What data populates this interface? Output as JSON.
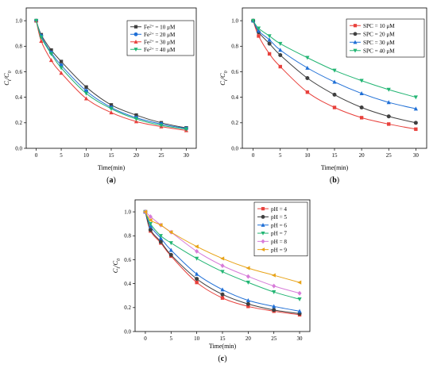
{
  "chart_data": [
    {
      "panel_label": "(a)",
      "type": "line",
      "xlabel": "Time(min)",
      "ylabel": "Ct/C0",
      "xlim": [
        -2,
        32
      ],
      "ylim": [
        0.0,
        1.1
      ],
      "x_ticks": [
        0,
        5,
        10,
        15,
        20,
        25,
        30
      ],
      "y_ticks": [
        0.0,
        0.2,
        0.4,
        0.6,
        0.8,
        1.0
      ],
      "legend_position": "top-right",
      "x": [
        0,
        1,
        3,
        5,
        10,
        15,
        20,
        25,
        30
      ],
      "series": [
        {
          "name_prefix": "Fe",
          "name_sup": "2+",
          "name_suffix": " = 10 μM",
          "color": "#3f3f3f",
          "marker": "square",
          "values": [
            1.0,
            0.89,
            0.77,
            0.68,
            0.48,
            0.34,
            0.26,
            0.2,
            0.16
          ]
        },
        {
          "name_prefix": "Fe",
          "name_sup": "2+",
          "name_suffix": " = 20 μM",
          "color": "#1f6fd6",
          "marker": "circle",
          "values": [
            1.0,
            0.88,
            0.75,
            0.65,
            0.45,
            0.32,
            0.24,
            0.19,
            0.155
          ]
        },
        {
          "name_prefix": "Fe",
          "name_sup": "2+",
          "name_suffix": " = 30 μM",
          "color": "#e8413c",
          "marker": "triangle",
          "values": [
            1.0,
            0.84,
            0.69,
            0.59,
            0.39,
            0.28,
            0.21,
            0.17,
            0.14
          ]
        },
        {
          "name_prefix": "Fe",
          "name_sup": "2+",
          "name_suffix": " = 40 μM",
          "color": "#22b573",
          "marker": "triangle-down",
          "values": [
            1.0,
            0.87,
            0.74,
            0.63,
            0.43,
            0.31,
            0.23,
            0.18,
            0.15
          ]
        }
      ]
    },
    {
      "panel_label": "(b)",
      "type": "line",
      "xlabel": "Time(min)",
      "ylabel": "Ct/C0",
      "xlim": [
        -2,
        32
      ],
      "ylim": [
        0.0,
        1.1
      ],
      "x_ticks": [
        0,
        5,
        10,
        15,
        20,
        25,
        30
      ],
      "y_ticks": [
        0.0,
        0.2,
        0.4,
        0.6,
        0.8,
        1.0
      ],
      "legend_position": "top-right",
      "x": [
        0,
        1,
        3,
        5,
        10,
        15,
        20,
        25,
        30
      ],
      "series": [
        {
          "name_prefix": "SPC = 10 μM",
          "name_sup": "",
          "name_suffix": "",
          "color": "#e8413c",
          "marker": "square",
          "values": [
            1.0,
            0.88,
            0.74,
            0.64,
            0.44,
            0.32,
            0.24,
            0.19,
            0.15
          ]
        },
        {
          "name_prefix": "SPC = 20 μM",
          "name_sup": "",
          "name_suffix": "",
          "color": "#3f3f3f",
          "marker": "circle",
          "values": [
            1.0,
            0.91,
            0.82,
            0.73,
            0.55,
            0.42,
            0.32,
            0.25,
            0.2
          ]
        },
        {
          "name_prefix": "SPC = 30 μM",
          "name_sup": "",
          "name_suffix": "",
          "color": "#1f6fd6",
          "marker": "triangle",
          "values": [
            1.0,
            0.92,
            0.85,
            0.77,
            0.63,
            0.52,
            0.43,
            0.36,
            0.31
          ]
        },
        {
          "name_prefix": "SPC = 40 μM",
          "name_sup": "",
          "name_suffix": "",
          "color": "#22b573",
          "marker": "triangle-down",
          "values": [
            1.0,
            0.94,
            0.88,
            0.82,
            0.71,
            0.61,
            0.53,
            0.46,
            0.4
          ]
        }
      ]
    },
    {
      "panel_label": "(c)",
      "type": "line",
      "xlabel": "Time(min)",
      "ylabel": "Ct/C0",
      "xlim": [
        -2,
        32
      ],
      "ylim": [
        0.0,
        1.1
      ],
      "x_ticks": [
        0,
        5,
        10,
        15,
        20,
        25,
        30
      ],
      "y_ticks": [
        0.0,
        0.2,
        0.4,
        0.6,
        0.8,
        1.0
      ],
      "legend_position": "top-right",
      "x": [
        0,
        1,
        3,
        5,
        10,
        15,
        20,
        25,
        30
      ],
      "series": [
        {
          "name_prefix": "pH = 4",
          "name_sup": "",
          "name_suffix": "",
          "color": "#e8413c",
          "marker": "square",
          "values": [
            1.0,
            0.84,
            0.74,
            0.63,
            0.41,
            0.28,
            0.21,
            0.17,
            0.14
          ]
        },
        {
          "name_prefix": "pH = 5",
          "name_sup": "",
          "name_suffix": "",
          "color": "#3f3f3f",
          "marker": "circle",
          "values": [
            1.0,
            0.85,
            0.75,
            0.64,
            0.44,
            0.31,
            0.23,
            0.18,
            0.15
          ]
        },
        {
          "name_prefix": "pH = 6",
          "name_sup": "",
          "name_suffix": "",
          "color": "#1f6fd6",
          "marker": "triangle",
          "values": [
            1.0,
            0.88,
            0.78,
            0.68,
            0.48,
            0.35,
            0.26,
            0.21,
            0.17
          ]
        },
        {
          "name_prefix": "pH = 7",
          "name_sup": "",
          "name_suffix": "",
          "color": "#22b573",
          "marker": "triangle-down",
          "values": [
            1.0,
            0.9,
            0.8,
            0.74,
            0.61,
            0.5,
            0.41,
            0.33,
            0.27
          ]
        },
        {
          "name_prefix": "pH = 8",
          "name_sup": "",
          "name_suffix": "",
          "color": "#d77bd9",
          "marker": "diamond",
          "values": [
            1.0,
            0.96,
            0.89,
            0.83,
            0.67,
            0.55,
            0.46,
            0.38,
            0.32
          ]
        },
        {
          "name_prefix": "pH = 9",
          "name_sup": "",
          "name_suffix": "",
          "color": "#e8a317",
          "marker": "triangle-left",
          "values": [
            1.0,
            0.93,
            0.89,
            0.83,
            0.71,
            0.61,
            0.53,
            0.47,
            0.41
          ]
        }
      ]
    }
  ]
}
